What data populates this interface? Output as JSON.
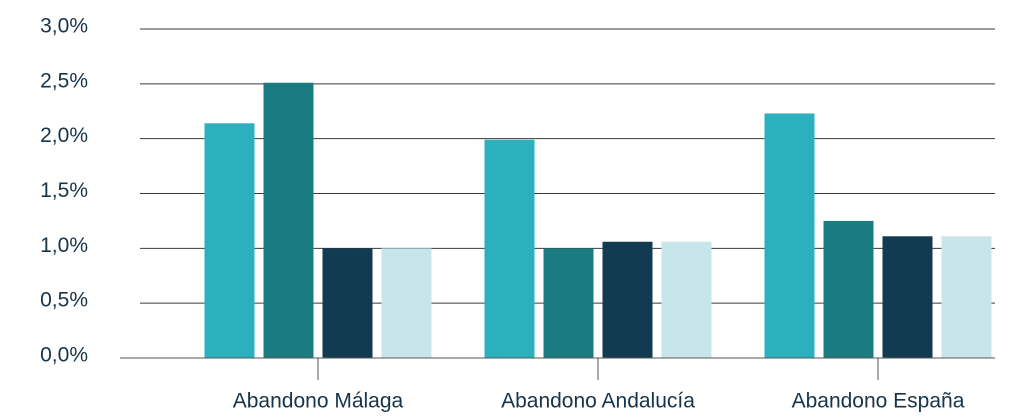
{
  "chart_data": {
    "type": "bar",
    "categories": [
      "Abandono Málaga",
      "Abandono Andalucía",
      "Abandono España"
    ],
    "series": [
      {
        "color": "#2bb0bd",
        "values": [
          2.14,
          1.99,
          2.23
        ]
      },
      {
        "color": "#1a7c80",
        "values": [
          2.51,
          1.0,
          1.25
        ]
      },
      {
        "color": "#123a50",
        "values": [
          1.0,
          1.06,
          1.11
        ]
      },
      {
        "color": "#c7e5ea",
        "values": [
          1.0,
          1.06,
          1.11
        ]
      }
    ],
    "ylim": [
      0,
      3.0
    ],
    "yticks": [
      {
        "value": 0,
        "label": "0,0%"
      },
      {
        "value": 0.5,
        "label": "0,5%"
      },
      {
        "value": 1.0,
        "label": "1,0%"
      },
      {
        "value": 1.5,
        "label": "1,5%"
      },
      {
        "value": 2.0,
        "label": "2,0%"
      },
      {
        "value": 2.5,
        "label": "2,5%"
      },
      {
        "value": 3.0,
        "label": "3,0%"
      }
    ],
    "grid": true
  }
}
